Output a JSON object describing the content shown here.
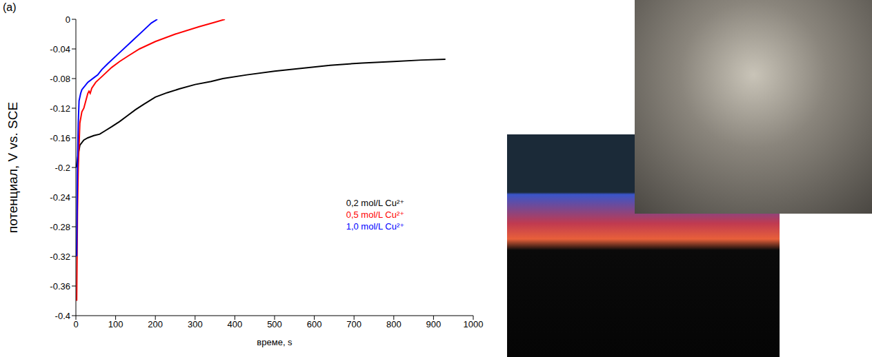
{
  "chart_data": {
    "type": "line",
    "title": "(a)",
    "x_label": "време, s",
    "y_label": "потенциал, V vs. SCE",
    "xlim": [
      0,
      1000
    ],
    "xticks": [
      0,
      100,
      200,
      300,
      400,
      500,
      600,
      700,
      800,
      900,
      1000
    ],
    "ylim": [
      -0.4,
      0
    ],
    "yticks": [
      -0.4,
      -0.36,
      -0.32,
      -0.28,
      -0.24,
      -0.2,
      -0.16,
      -0.12,
      -0.08,
      -0.04,
      0
    ],
    "legend": "right",
    "grid": false,
    "series": [
      {
        "name": "0,2 mol/L Cu²⁺",
        "color": "#000000",
        "x": [
          1,
          5,
          10,
          20,
          30,
          45,
          60,
          75,
          90,
          110,
          130,
          150,
          170,
          200,
          230,
          260,
          300,
          340,
          370,
          430,
          500,
          570,
          640,
          720,
          800,
          870,
          930
        ],
        "values": [
          -0.2,
          -0.185,
          -0.17,
          -0.163,
          -0.16,
          -0.157,
          -0.155,
          -0.15,
          -0.145,
          -0.138,
          -0.13,
          -0.122,
          -0.115,
          -0.105,
          -0.099,
          -0.094,
          -0.088,
          -0.084,
          -0.08,
          -0.075,
          -0.07,
          -0.066,
          -0.062,
          -0.059,
          -0.057,
          -0.055,
          -0.054
        ]
      },
      {
        "name": "0,5 mol/L Cu²⁺",
        "color": "#ff0000",
        "x": [
          2,
          4,
          6,
          10,
          15,
          20,
          25,
          30,
          33,
          36,
          40,
          50,
          70,
          90,
          110,
          130,
          160,
          200,
          250,
          310,
          350,
          375
        ],
        "values": [
          -0.38,
          -0.26,
          -0.2,
          -0.14,
          -0.125,
          -0.12,
          -0.11,
          -0.1,
          -0.097,
          -0.1,
          -0.093,
          -0.085,
          -0.075,
          -0.065,
          -0.057,
          -0.05,
          -0.04,
          -0.03,
          -0.02,
          -0.01,
          -0.004,
          0
        ]
      },
      {
        "name": "1,0 mol/L Cu²⁺",
        "color": "#0000ff",
        "x": [
          2,
          4,
          6,
          8,
          12,
          15,
          30,
          45,
          55,
          65,
          80,
          110,
          140,
          170,
          190,
          205
        ],
        "values": [
          -0.32,
          -0.2,
          -0.14,
          -0.11,
          -0.1,
          -0.095,
          -0.085,
          -0.079,
          -0.075,
          -0.068,
          -0.06,
          -0.045,
          -0.03,
          -0.015,
          -0.005,
          0
        ]
      }
    ]
  }
}
